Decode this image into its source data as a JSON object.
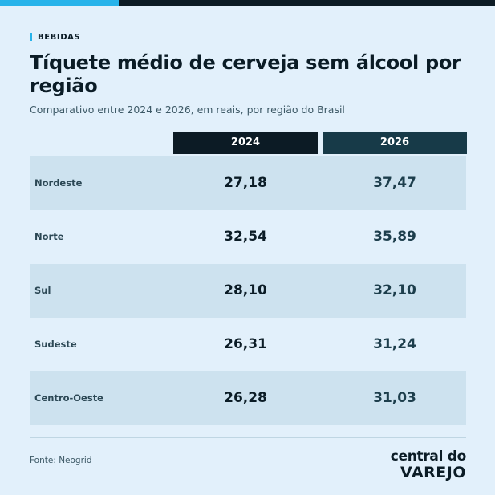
{
  "kicker": "BEBIDAS",
  "title": "Tíquete médio de cerveja sem álcool por região",
  "subtitle": "Comparativo entre 2024 e 2026, em reais, por região do Brasil",
  "source": "Fonte: Neogrid",
  "logo": {
    "top": "central do",
    "bottom": "VAREJO"
  },
  "colors": {
    "background": "#e2f0fb",
    "accent": "#27b3ea",
    "dark": "#0c1b25",
    "header_2026": "#173a48",
    "row_shade": "#cde2ef"
  },
  "chart_data": {
    "type": "table",
    "title": "Tíquete médio de cerveja sem álcool por região",
    "subtitle": "Comparativo entre 2024 e 2026, em reais, por região do Brasil",
    "columns": [
      "2024",
      "2026"
    ],
    "categories": [
      "Nordeste",
      "Norte",
      "Sul",
      "Sudeste",
      "Centro-Oeste"
    ],
    "series": [
      {
        "name": "2024",
        "values": [
          27.18,
          32.54,
          28.1,
          26.31,
          26.28
        ]
      },
      {
        "name": "2026",
        "values": [
          37.47,
          35.89,
          32.1,
          31.24,
          31.03
        ]
      }
    ],
    "rows": [
      {
        "region": "Nordeste",
        "v2024": "27,18",
        "v2026": "37,47"
      },
      {
        "region": "Norte",
        "v2024": "32,54",
        "v2026": "35,89"
      },
      {
        "region": "Sul",
        "v2024": "28,10",
        "v2026": "32,10"
      },
      {
        "region": "Sudeste",
        "v2024": "26,31",
        "v2026": "31,24"
      },
      {
        "region": "Centro-Oeste",
        "v2024": "26,28",
        "v2026": "31,03"
      }
    ]
  }
}
